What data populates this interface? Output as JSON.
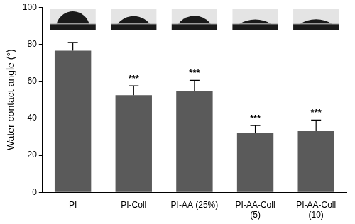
{
  "chart_data": {
    "type": "bar",
    "y_label": "Water contact angle (°)",
    "categories": [
      "PI",
      "PI-Coll",
      "PI-AA (25%)",
      [
        "PI-AA-Coll",
        "(5)"
      ],
      [
        "PI-AA-Coll",
        "(10)"
      ]
    ],
    "values": [
      76.5,
      52.5,
      54.5,
      32,
      33
    ],
    "errors": [
      4.5,
      5,
      6,
      4,
      6
    ],
    "significance": [
      null,
      "***",
      "***",
      "***",
      "***"
    ],
    "color": "#5a5a5a",
    "ylim": [
      0,
      100
    ],
    "yticks": [
      0,
      20,
      40,
      60,
      80,
      100
    ],
    "grid": false
  }
}
